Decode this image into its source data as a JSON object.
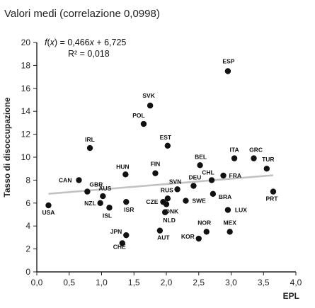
{
  "chart_data": {
    "type": "scatter",
    "title": "Valori medi (correlazione 0,0998)",
    "xlabel": "EPL",
    "ylabel": "Tasso di disoccupazione",
    "xlim": [
      0,
      4
    ],
    "ylim": [
      0,
      20
    ],
    "x_ticks": [
      0,
      0.5,
      1,
      1.5,
      2,
      2.5,
      3,
      3.5,
      4
    ],
    "x_tick_labels": [
      "0,0",
      "0,5",
      "1,0",
      "1,5",
      "2,0",
      "2,5",
      "3,0",
      "3,5",
      "4,0"
    ],
    "y_ticks": [
      0,
      2,
      4,
      6,
      8,
      10,
      12,
      14,
      16,
      18,
      20
    ],
    "y_tick_labels": [
      "0",
      "2",
      "4",
      "6",
      "8",
      "10",
      "12",
      "14",
      "16",
      "18",
      "20"
    ],
    "grid": false,
    "regression": {
      "equation": "f(x) = 0,466x + 6,725",
      "r_squared": "R² = 0,018",
      "slope": 0.466,
      "intercept": 6.725
    },
    "points": [
      {
        "label": "USA",
        "x": 0.18,
        "y": 5.8
      },
      {
        "label": "CAN",
        "x": 0.65,
        "y": 8.0
      },
      {
        "label": "GBR",
        "x": 0.78,
        "y": 7.0
      },
      {
        "label": "IRL",
        "x": 0.82,
        "y": 10.8
      },
      {
        "label": "AUS",
        "x": 1.02,
        "y": 6.6
      },
      {
        "label": "NZL",
        "x": 0.98,
        "y": 6.0
      },
      {
        "label": "ISL",
        "x": 1.12,
        "y": 5.6
      },
      {
        "label": "HUN",
        "x": 1.37,
        "y": 8.5
      },
      {
        "label": "ISR",
        "x": 1.38,
        "y": 6.1
      },
      {
        "label": "JPN",
        "x": 1.38,
        "y": 3.2
      },
      {
        "label": "CHE",
        "x": 1.32,
        "y": 2.5
      },
      {
        "label": "SVK",
        "x": 1.75,
        "y": 14.5
      },
      {
        "label": "POL",
        "x": 1.65,
        "y": 12.9
      },
      {
        "label": "FIN",
        "x": 1.83,
        "y": 8.6
      },
      {
        "label": "EST",
        "x": 2.02,
        "y": 11.0
      },
      {
        "label": "CZE",
        "x": 1.95,
        "y": 6.1
      },
      {
        "label": "RUS",
        "x": 2.02,
        "y": 6.4
      },
      {
        "label": "DNK",
        "x": 2.0,
        "y": 5.9
      },
      {
        "label": "NLD",
        "x": 1.98,
        "y": 5.2
      },
      {
        "label": "AUT",
        "x": 1.9,
        "y": 3.6
      },
      {
        "label": "SVN",
        "x": 2.17,
        "y": 7.2
      },
      {
        "label": "DEU",
        "x": 2.42,
        "y": 7.5
      },
      {
        "label": "SWE",
        "x": 2.3,
        "y": 6.2
      },
      {
        "label": "BEL",
        "x": 2.52,
        "y": 9.3
      },
      {
        "label": "CHL",
        "x": 2.7,
        "y": 8.0
      },
      {
        "label": "FRA",
        "x": 2.88,
        "y": 8.4
      },
      {
        "label": "BRA",
        "x": 2.72,
        "y": 6.8
      },
      {
        "label": "KOR",
        "x": 2.5,
        "y": 2.9
      },
      {
        "label": "NOR",
        "x": 2.62,
        "y": 3.5
      },
      {
        "label": "ESP",
        "x": 2.95,
        "y": 17.5
      },
      {
        "label": "ITA",
        "x": 3.05,
        "y": 9.9
      },
      {
        "label": "GRC",
        "x": 3.35,
        "y": 9.9
      },
      {
        "label": "TUR",
        "x": 3.55,
        "y": 9.0
      },
      {
        "label": "PRT",
        "x": 3.65,
        "y": 7.0
      },
      {
        "label": "LUX",
        "x": 2.95,
        "y": 5.4
      },
      {
        "label": "MEX",
        "x": 2.98,
        "y": 3.5
      }
    ]
  }
}
